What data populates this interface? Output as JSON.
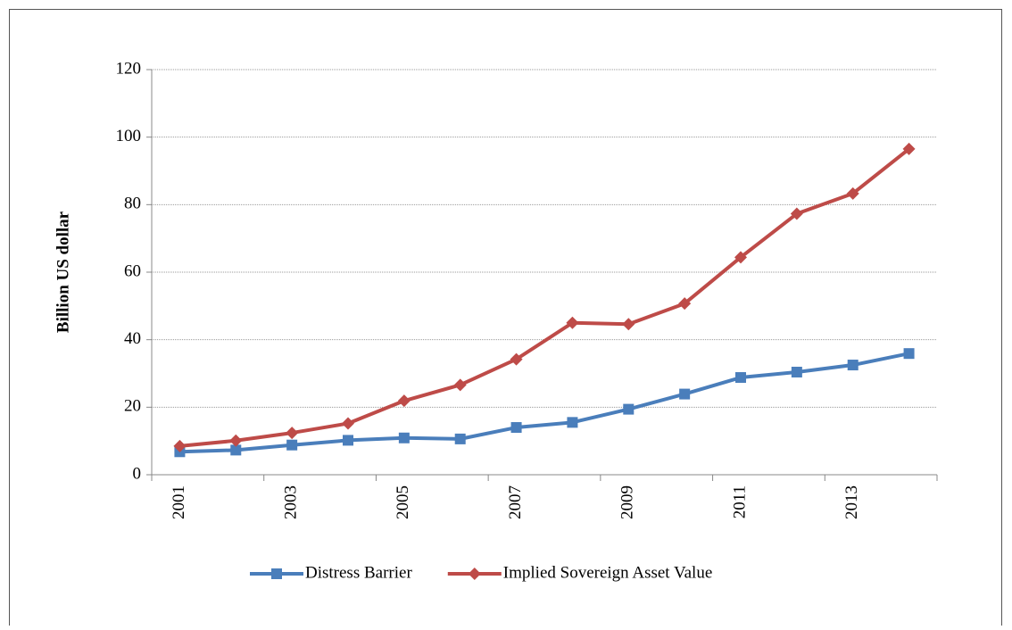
{
  "chart_data": {
    "type": "line",
    "y_label": "Billion US dollar",
    "categories": [
      "2001",
      null,
      "2003",
      null,
      "2005",
      null,
      "2007",
      null,
      "2009",
      null,
      "2011",
      null,
      "2013",
      null
    ],
    "series": [
      {
        "name": "Distress Barrier",
        "color": "#4a7ebb",
        "marker": "square",
        "values": [
          6.8,
          7.3,
          8.8,
          10.2,
          10.9,
          10.6,
          14.0,
          15.5,
          19.4,
          23.9,
          28.8,
          30.4,
          32.5,
          35.9
        ]
      },
      {
        "name": "Implied Sovereign Asset Value",
        "color": "#be4b48",
        "marker": "diamond",
        "values": [
          8.5,
          10.1,
          12.4,
          15.2,
          21.9,
          26.6,
          34.2,
          45.0,
          44.6,
          50.7,
          64.4,
          77.3,
          83.3,
          96.5
        ]
      }
    ],
    "ylim": [
      0,
      120
    ],
    "yticks": [
      0,
      20,
      40,
      60,
      80,
      100,
      120
    ],
    "grid": true,
    "legend": "bottom"
  }
}
